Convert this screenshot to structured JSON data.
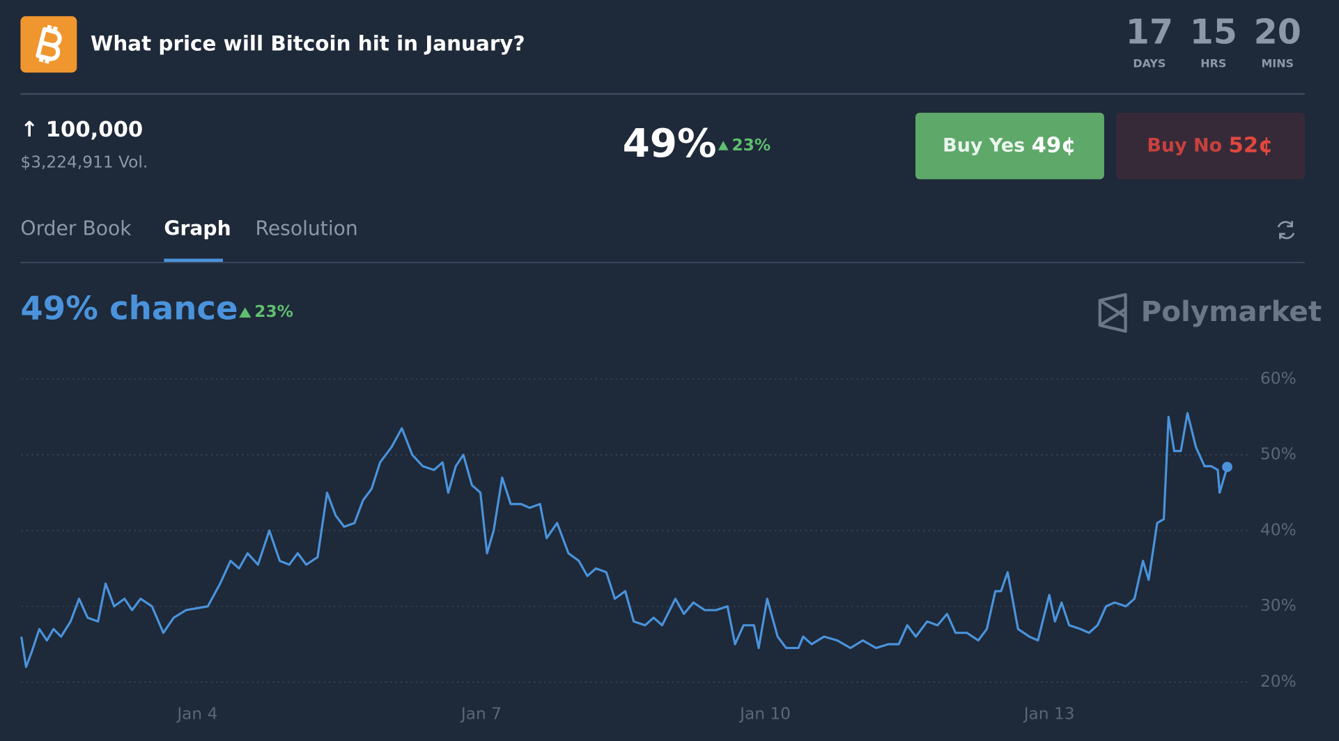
{
  "header": {
    "title": "What price will Bitcoin hit in January?",
    "countdown": [
      {
        "value": "17",
        "unit": "DAYS"
      },
      {
        "value": "15",
        "unit": "HRS"
      },
      {
        "value": "20",
        "unit": "MINS"
      }
    ]
  },
  "market": {
    "target": "↑ 100,000",
    "volume": "$3,224,911 Vol.",
    "probability": "49%",
    "change": "23%",
    "buy_yes": {
      "label": "Buy Yes",
      "price": "49¢"
    },
    "buy_no": {
      "label": "Buy No",
      "price": "52¢"
    }
  },
  "tabs": [
    "Order Book",
    "Graph",
    "Resolution"
  ],
  "brand": "Polymarket",
  "chart_data": {
    "type": "line",
    "title": "49% chance",
    "change": "23%",
    "xlim": [
      2.14,
      15.7
    ],
    "ylim": [
      20,
      60
    ],
    "xticks": [
      {
        "value": 4,
        "label": "Jan 4"
      },
      {
        "value": 7,
        "label": "Jan 7"
      },
      {
        "value": 10,
        "label": "Jan 10"
      },
      {
        "value": 13,
        "label": "Jan 13"
      }
    ],
    "yticks": [
      {
        "value": 20,
        "label": "20%"
      },
      {
        "value": 30,
        "label": "30%"
      },
      {
        "value": 40,
        "label": "40%"
      },
      {
        "value": 50,
        "label": "50%"
      },
      {
        "value": 60,
        "label": "60%"
      }
    ],
    "grid": true,
    "series": [
      {
        "name": "Yes",
        "color": "#4a93dc",
        "x": [
          2.14,
          2.19,
          2.25,
          2.33,
          2.41,
          2.48,
          2.56,
          2.66,
          2.75,
          2.84,
          2.95,
          3.03,
          3.12,
          3.23,
          3.31,
          3.4,
          3.52,
          3.64,
          3.75,
          3.88,
          4.11,
          4.24,
          4.35,
          4.44,
          4.53,
          4.64,
          4.76,
          4.87,
          4.97,
          5.06,
          5.15,
          5.27,
          5.37,
          5.46,
          5.55,
          5.66,
          5.75,
          5.84,
          5.93,
          6.05,
          6.16,
          6.27,
          6.38,
          6.5,
          6.59,
          6.65,
          6.73,
          6.81,
          6.9,
          6.99,
          7.06,
          7.13,
          7.22,
          7.31,
          7.42,
          7.51,
          7.62,
          7.69,
          7.8,
          7.92,
          8.03,
          8.12,
          8.21,
          8.32,
          8.41,
          8.52,
          8.61,
          8.73,
          8.82,
          8.91,
          9.05,
          9.14,
          9.24,
          9.36,
          9.48,
          9.6,
          9.68,
          9.77,
          9.88,
          9.93,
          10.02,
          10.13,
          10.22,
          10.35,
          10.4,
          10.49,
          10.62,
          10.76,
          10.9,
          11.03,
          11.17,
          11.3,
          11.41,
          11.5,
          11.59,
          11.71,
          11.82,
          11.92,
          12.01,
          12.13,
          12.25,
          12.34,
          12.43,
          12.49,
          12.56,
          12.67,
          12.79,
          12.88,
          13.0,
          13.06,
          13.13,
          13.21,
          13.33,
          13.42,
          13.51,
          13.6,
          13.69,
          13.81,
          13.9,
          13.99,
          14.05,
          14.14,
          14.21,
          14.26,
          14.32,
          14.39,
          14.46,
          14.55,
          14.64,
          14.71,
          14.78,
          14.8,
          14.88
        ],
        "values": [
          26,
          22,
          24,
          27,
          25.5,
          27,
          26,
          28,
          31,
          28.5,
          28,
          33,
          30,
          31,
          29.5,
          31,
          30,
          26.5,
          28.5,
          29.5,
          30,
          33,
          36,
          35,
          37,
          35.5,
          40,
          36,
          35.5,
          37,
          35.5,
          36.5,
          45,
          42,
          40.5,
          41,
          44,
          45.5,
          49,
          51,
          53.5,
          50,
          48.5,
          48,
          49,
          45,
          48.5,
          50,
          46,
          45,
          37,
          40,
          47,
          43.5,
          43.5,
          43,
          43.5,
          39,
          41,
          37,
          36,
          34,
          35,
          34.5,
          31,
          32,
          28,
          27.5,
          28.5,
          27.5,
          31,
          29,
          30.5,
          29.5,
          29.5,
          30,
          25,
          27.5,
          27.5,
          24.5,
          31,
          26,
          24.5,
          24.5,
          26,
          25,
          26,
          25.5,
          24.5,
          25.5,
          24.5,
          25,
          25,
          27.5,
          26,
          28,
          27.5,
          29,
          26.5,
          26.5,
          25.5,
          27,
          32,
          32,
          34.5,
          27,
          26,
          25.5,
          31.5,
          28,
          30.5,
          27.5,
          27,
          26.5,
          27.5,
          30,
          30.5,
          30,
          31,
          36,
          33.5,
          41,
          41.5,
          55,
          50.5,
          50.5,
          55.5,
          51,
          48.5,
          48.5,
          48,
          45,
          48.4
        ]
      }
    ]
  }
}
